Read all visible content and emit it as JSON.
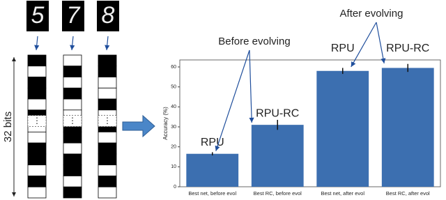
{
  "chart_data": {
    "type": "bar",
    "categories": [
      "Best net, before evol",
      "Best RC, before evol",
      "Best net, after evol",
      "Best RC, after evol"
    ],
    "values": [
      16.5,
      31,
      58,
      59.5
    ],
    "errors": [
      0.8,
      2.5,
      1.5,
      2
    ],
    "bar_labels": [
      "RPU",
      "RPU-RC",
      "RPU",
      "RPU-RC"
    ],
    "annotations": [
      "Before evolving",
      "After evolving"
    ],
    "y_label": "Accuracy (%)",
    "color": "#3c6fb0",
    "ylim": [
      0,
      63.5
    ],
    "yticks": [
      0,
      10,
      20,
      30,
      40,
      50,
      60
    ],
    "grid": false
  },
  "diagram": {
    "digits": [
      "5",
      "7",
      "8"
    ],
    "bits_label": "32 bits"
  }
}
